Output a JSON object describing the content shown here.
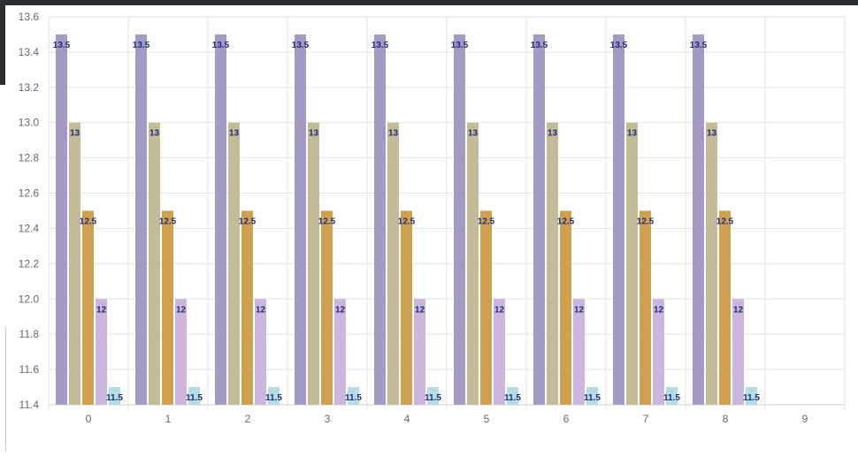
{
  "chart_data": {
    "type": "bar",
    "categories": [
      "0",
      "1",
      "2",
      "3",
      "4",
      "5",
      "6",
      "7",
      "8",
      "9"
    ],
    "series": [
      {
        "values": [
          13.5,
          13.5,
          13.5,
          13.5,
          13.5,
          13.5,
          13.5,
          13.5,
          13.5,
          null
        ],
        "color": "#a39bc4"
      },
      {
        "values": [
          13,
          13,
          13,
          13,
          13,
          13,
          13,
          13,
          13,
          null
        ],
        "color": "#c4bb98"
      },
      {
        "values": [
          12.5,
          12.5,
          12.5,
          12.5,
          12.5,
          12.5,
          12.5,
          12.5,
          12.5,
          null
        ],
        "color": "#cfa050"
      },
      {
        "values": [
          12,
          12,
          12,
          12,
          12,
          12,
          12,
          12,
          12,
          null
        ],
        "color": "#cdb6de"
      },
      {
        "values": [
          11.5,
          11.5,
          11.5,
          11.5,
          11.5,
          11.5,
          11.5,
          11.5,
          11.5,
          null
        ],
        "color": "#b5dbe6"
      }
    ],
    "ylim": [
      11.4,
      13.6
    ],
    "yticks": [
      "11.4",
      "11.6",
      "11.8",
      "12.0",
      "12.2",
      "12.4",
      "12.6",
      "12.8",
      "13.0",
      "13.2",
      "13.4",
      "13.6"
    ],
    "grid": true,
    "data_labels": true
  }
}
